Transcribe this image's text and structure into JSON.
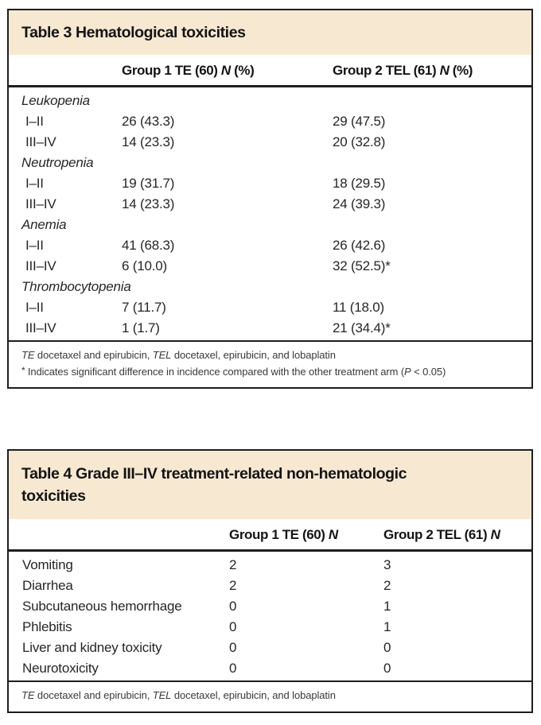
{
  "colors": {
    "header_bg": "#f7e8d2",
    "border": "#1e1e1e",
    "text": "#262626",
    "footnote_text": "#3a3a3a"
  },
  "table3": {
    "title": "Table 3 Hematological toxicities",
    "col_headers": [
      {
        "prefix": "Group 1 TE (60) ",
        "n": "N",
        "suffix": " (%)"
      },
      {
        "prefix": "Group 2 TEL (61) ",
        "n": "N",
        "suffix": " (%)"
      }
    ],
    "rows": [
      {
        "type": "section",
        "label": "Leukopenia"
      },
      {
        "type": "data",
        "label": "I–II",
        "g1": "26 (43.3)",
        "g2": "29 (47.5)"
      },
      {
        "type": "data",
        "label": "III–IV",
        "g1": "14 (23.3)",
        "g2": "20 (32.8)"
      },
      {
        "type": "section",
        "label": "Neutropenia"
      },
      {
        "type": "data",
        "label": "I–II",
        "g1": "19 (31.7)",
        "g2": "18 (29.5)"
      },
      {
        "type": "data",
        "label": "III–IV",
        "g1": "14 (23.3)",
        "g2": "24 (39.3)"
      },
      {
        "type": "section",
        "label": "Anemia"
      },
      {
        "type": "data",
        "label": "I–II",
        "g1": "41 (68.3)",
        "g2": "26 (42.6)"
      },
      {
        "type": "data",
        "label": "III–IV",
        "g1": "6 (10.0)",
        "g2": "32 (52.5)*"
      },
      {
        "type": "section",
        "label": "Thrombocytopenia"
      },
      {
        "type": "data",
        "label": "I–II",
        "g1": "7 (11.7)",
        "g2": "11 (18.0)"
      },
      {
        "type": "data",
        "label": "III–IV",
        "g1": "1 (1.7)",
        "g2": "21 (34.4)*"
      }
    ],
    "footnote_abbrev": {
      "te": "TE",
      "te_text": " docetaxel and epirubicin, ",
      "tel": "TEL",
      "tel_text": " docetaxel, epirubicin, and lobaplatin"
    },
    "footnote_sig": {
      "marker": "* ",
      "pre": "Indicates significant difference in incidence compared with the other treatment arm (",
      "p": "P",
      "post": " < 0.05)"
    }
  },
  "table4": {
    "title": "Table 4 Grade III–IV treatment-related non-hematologic toxicities",
    "col_headers": [
      {
        "prefix": "Group 1 TE (60) ",
        "n": "N",
        "suffix": ""
      },
      {
        "prefix": "Group 2 TEL (61) ",
        "n": "N",
        "suffix": ""
      }
    ],
    "rows": [
      {
        "label": "Vomiting",
        "g1": "2",
        "g2": "3"
      },
      {
        "label": "Diarrhea",
        "g1": "2",
        "g2": "2"
      },
      {
        "label": "Subcutaneous hemorrhage",
        "g1": "0",
        "g2": "1"
      },
      {
        "label": "Phlebitis",
        "g1": "0",
        "g2": "1"
      },
      {
        "label": "Liver and kidney toxicity",
        "g1": "0",
        "g2": "0"
      },
      {
        "label": "Neurotoxicity",
        "g1": "0",
        "g2": "0"
      }
    ],
    "footnote_abbrev": {
      "te": "TE",
      "te_text": " docetaxel and epirubicin, ",
      "tel": "TEL",
      "tel_text": " docetaxel, epirubicin, and lobaplatin"
    }
  }
}
